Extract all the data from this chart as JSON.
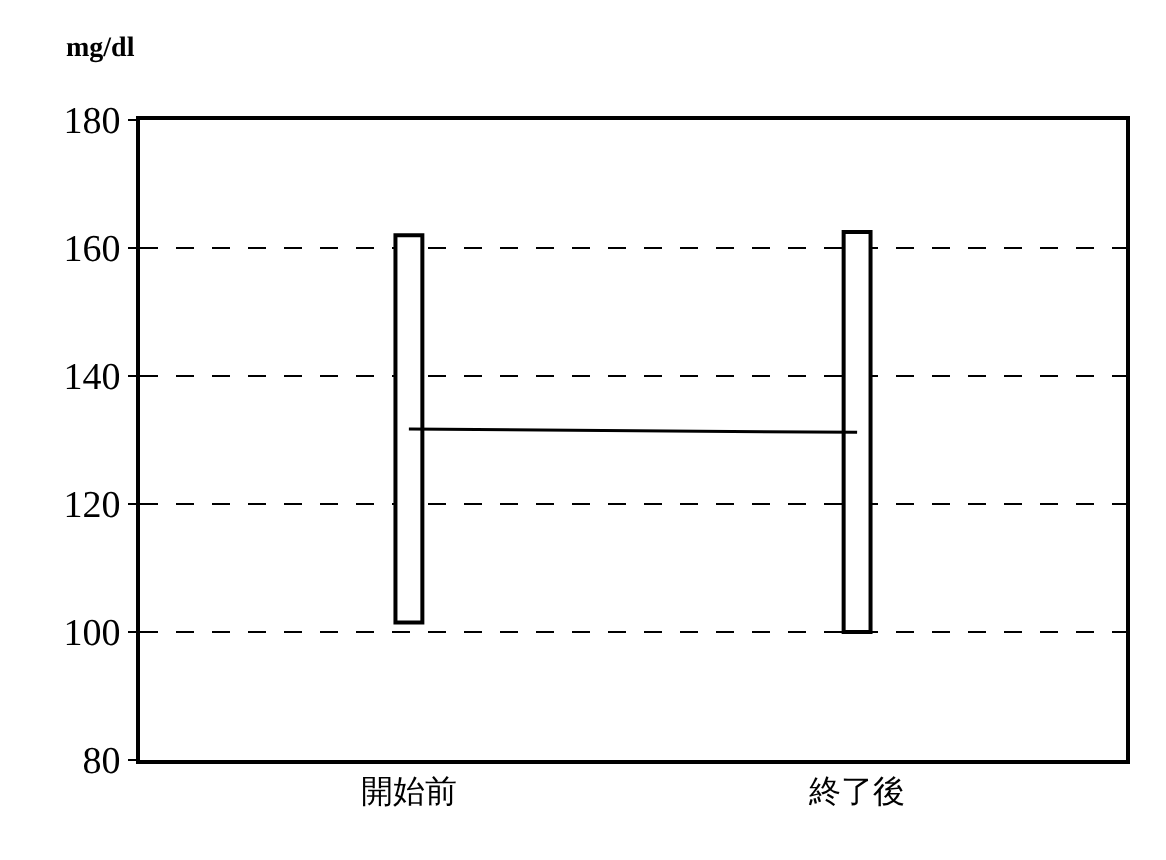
{
  "chart_data": {
    "type": "bar",
    "ylabel": "mg/dl",
    "categories": [
      "開始前",
      "終了後"
    ],
    "series": [
      {
        "color": "#ffffff",
        "base": [
          101.5,
          100
        ],
        "values": [
          60.5,
          62.5
        ]
      },
      {
        "type": "line",
        "color": "#000000",
        "values": [
          131.7,
          131.2
        ]
      }
    ],
    "ylim": [
      80,
      180
    ],
    "yticks": [
      80,
      100,
      120,
      140,
      160,
      180
    ],
    "grid": "y"
  }
}
